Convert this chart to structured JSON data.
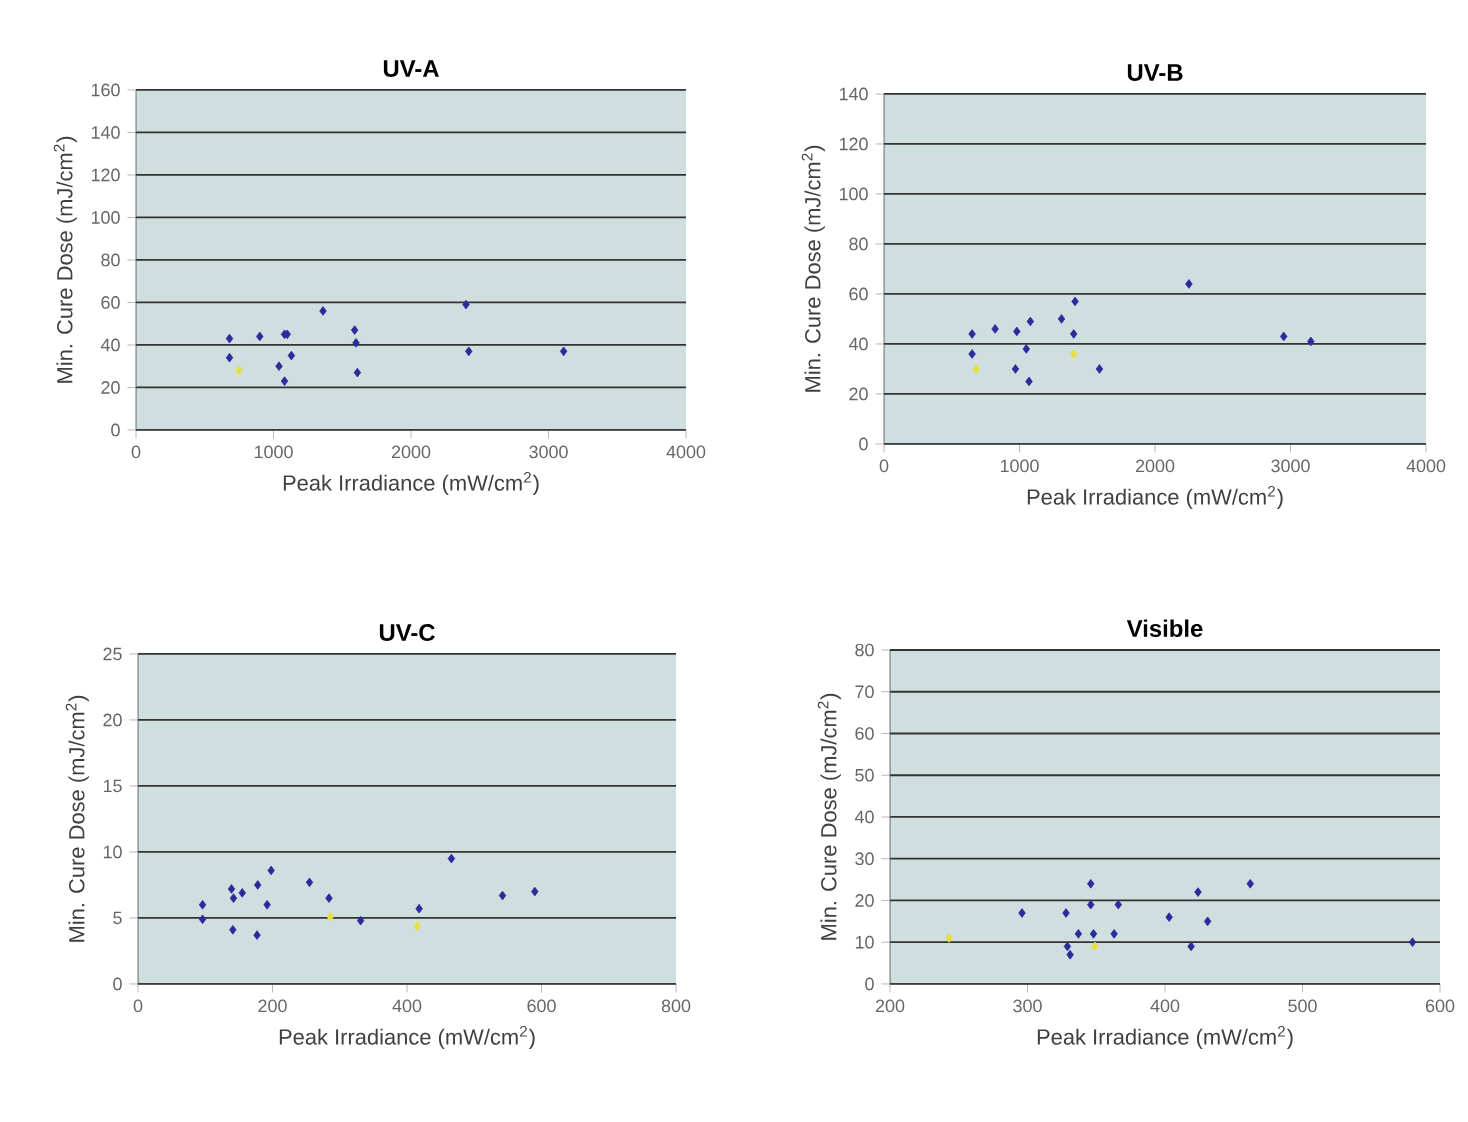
{
  "chart_data": [
    {
      "type": "scatter",
      "title": "UV-A",
      "xlabel": "Peak Irradiance (mW/cm$^{2}$)",
      "ylabel": "Min. Cure Dose (mJ/cm$^{2}$)",
      "xlim": [
        0,
        4000
      ],
      "ylim": [
        0,
        160
      ],
      "xticks": [
        0,
        1000,
        2000,
        3000,
        4000
      ],
      "yticks": [
        0,
        20,
        40,
        60,
        80,
        100,
        120,
        140,
        160
      ],
      "grid": "y",
      "marker": "diamond",
      "series": [
        {
          "color": "#2b2b9c",
          "x": [
            680,
            680,
            900,
            1080,
            1100,
            1040,
            1080,
            1130,
            1360,
            1590,
            1600,
            1610,
            2400,
            2420,
            3110
          ],
          "values": [
            43,
            34,
            44,
            45,
            45,
            30,
            23,
            35,
            56,
            47,
            41,
            27,
            59,
            37,
            37
          ]
        },
        {
          "color": "#e8e040",
          "x": [
            750
          ],
          "values": [
            28
          ]
        }
      ]
    },
    {
      "type": "scatter",
      "title": "UV-B",
      "xlabel": "Peak Irradiance (mW/cm$^{2}$)",
      "ylabel": "Min. Cure Dose (mJ/cm$^{2}$)",
      "xlim": [
        0,
        4000
      ],
      "ylim": [
        0,
        140
      ],
      "xticks": [
        0,
        1000,
        2000,
        3000,
        4000
      ],
      "yticks": [
        0,
        20,
        40,
        60,
        80,
        100,
        120,
        140
      ],
      "grid": "y",
      "marker": "diamond",
      "series": [
        {
          "color": "#2b2b9c",
          "x": [
            650,
            650,
            820,
            980,
            1080,
            1050,
            970,
            1070,
            1310,
            1400,
            1410,
            1590,
            2250,
            2950,
            3150
          ],
          "values": [
            44,
            36,
            46,
            45,
            49,
            38,
            30,
            25,
            50,
            44,
            57,
            30,
            64,
            43,
            41
          ]
        },
        {
          "color": "#e8e040",
          "x": [
            680,
            1400
          ],
          "values": [
            30,
            36
          ]
        }
      ]
    },
    {
      "type": "scatter",
      "title": "UV-C",
      "xlabel": "Peak Irradiance (mW/cm$^{2}$)",
      "ylabel": "Min. Cure Dose (mJ/cm$^{2}$)",
      "xlim": [
        0,
        800
      ],
      "ylim": [
        0,
        25
      ],
      "xticks": [
        0,
        200,
        400,
        600,
        800
      ],
      "yticks": [
        0,
        5,
        10,
        15,
        20,
        25
      ],
      "grid": "y",
      "marker": "diamond",
      "series": [
        {
          "color": "#2b2b9c",
          "x": [
            96,
            96,
            139,
            142,
            155,
            141,
            178,
            177,
            192,
            198,
            255,
            284,
            331,
            418,
            466,
            542,
            590
          ],
          "values": [
            6.0,
            4.9,
            7.2,
            6.5,
            6.9,
            4.1,
            7.5,
            3.7,
            6.0,
            8.6,
            7.7,
            6.5,
            4.8,
            5.7,
            9.5,
            6.7,
            7.0
          ]
        },
        {
          "color": "#e8e040",
          "x": [
            286,
            415
          ],
          "values": [
            5.1,
            4.4
          ]
        }
      ]
    },
    {
      "type": "scatter",
      "title": "Visible",
      "xlabel": "Peak Irradiance (mW/cm$^{2}$)",
      "ylabel": "Min. Cure Dose (mJ/cm$^{2}$)",
      "xlim": [
        200,
        600
      ],
      "ylim": [
        0,
        80
      ],
      "xticks": [
        200,
        300,
        400,
        500,
        600
      ],
      "yticks": [
        0,
        10,
        20,
        30,
        40,
        50,
        60,
        70,
        80
      ],
      "grid": "y",
      "marker": "diamond",
      "series": [
        {
          "color": "#2b2b9c",
          "x": [
            296,
            328,
            329,
            337,
            346,
            346,
            348,
            363,
            366,
            403,
            419,
            424,
            431,
            462,
            580,
            331
          ],
          "values": [
            17,
            17,
            9,
            12,
            24,
            19,
            12,
            12,
            19,
            16,
            9,
            22,
            15,
            24,
            10,
            7
          ]
        },
        {
          "color": "#e8e040",
          "x": [
            243,
            349
          ],
          "values": [
            11,
            9
          ]
        }
      ]
    }
  ]
}
